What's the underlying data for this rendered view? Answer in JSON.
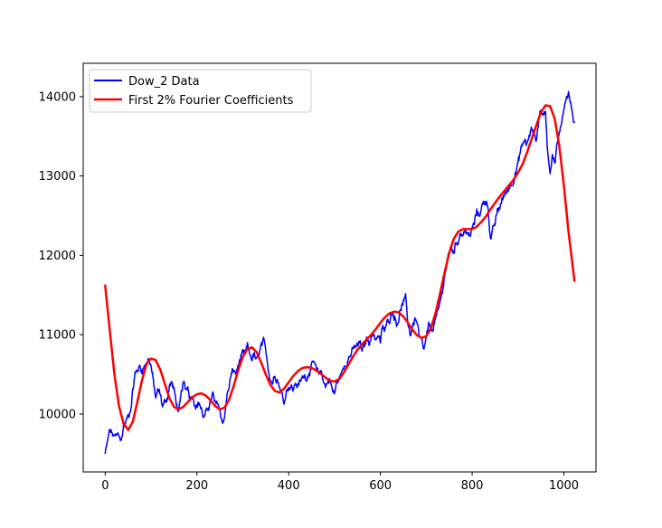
{
  "chart_data": {
    "type": "line",
    "title": "",
    "xlabel": "",
    "ylabel": "",
    "xlim": [
      -48,
      1070
    ],
    "ylim": [
      9270,
      14420
    ],
    "xticks": [
      0,
      200,
      400,
      600,
      800,
      1000
    ],
    "yticks": [
      10000,
      11000,
      12000,
      13000,
      14000
    ],
    "legend": {
      "placement": "upper-left"
    },
    "grid": false,
    "series": [
      {
        "name": "Dow_2 Data",
        "color": "#0000ff",
        "stroke_width": 1.5,
        "noise": 60,
        "x": [
          0,
          5,
          10,
          20,
          30,
          35,
          40,
          45,
          55,
          60,
          65,
          70,
          75,
          80,
          85,
          90,
          95,
          100,
          105,
          110,
          115,
          120,
          125,
          130,
          135,
          140,
          145,
          150,
          155,
          160,
          165,
          170,
          175,
          180,
          185,
          190,
          195,
          200,
          205,
          210,
          215,
          220,
          225,
          230,
          235,
          240,
          245,
          250,
          255,
          260,
          265,
          270,
          275,
          280,
          285,
          290,
          295,
          300,
          305,
          310,
          315,
          320,
          325,
          330,
          335,
          340,
          345,
          350,
          355,
          360,
          365,
          370,
          375,
          380,
          385,
          390,
          395,
          400,
          405,
          410,
          415,
          420,
          425,
          430,
          435,
          440,
          445,
          450,
          455,
          460,
          465,
          470,
          475,
          480,
          485,
          490,
          495,
          500,
          505,
          510,
          515,
          520,
          525,
          530,
          535,
          540,
          545,
          550,
          555,
          560,
          565,
          570,
          575,
          580,
          585,
          590,
          595,
          600,
          605,
          610,
          615,
          620,
          625,
          630,
          635,
          640,
          645,
          650,
          655,
          660,
          665,
          670,
          675,
          680,
          685,
          690,
          695,
          700,
          705,
          710,
          715,
          720,
          725,
          730,
          735,
          740,
          745,
          750,
          755,
          760,
          765,
          770,
          775,
          780,
          785,
          790,
          795,
          800,
          805,
          810,
          815,
          820,
          825,
          830,
          835,
          840,
          845,
          850,
          855,
          860,
          865,
          870,
          875,
          880,
          885,
          890,
          895,
          900,
          905,
          910,
          915,
          920,
          925,
          930,
          935,
          940,
          945,
          950,
          955,
          960,
          965,
          970,
          975,
          980,
          985,
          990,
          995,
          1000,
          1005,
          1010,
          1015,
          1020,
          1023
        ],
        "y": [
          9500,
          9650,
          9800,
          9700,
          9750,
          9650,
          9850,
          9900,
          10050,
          10300,
          10500,
          10550,
          10600,
          10550,
          10600,
          10650,
          10700,
          10600,
          10400,
          10200,
          10300,
          10250,
          10100,
          10150,
          10200,
          10350,
          10400,
          10300,
          10150,
          10000,
          10200,
          10400,
          10300,
          10350,
          10200,
          10250,
          10150,
          10100,
          10150,
          10050,
          9950,
          10000,
          10100,
          10150,
          10250,
          10100,
          10150,
          10050,
          9900,
          9950,
          10200,
          10350,
          10500,
          10550,
          10500,
          10600,
          10700,
          10750,
          10750,
          10850,
          10750,
          10700,
          10750,
          10650,
          10750,
          10850,
          10900,
          10800,
          10600,
          10450,
          10400,
          10500,
          10450,
          10350,
          10250,
          10150,
          10300,
          10350,
          10350,
          10300,
          10400,
          10350,
          10400,
          10450,
          10500,
          10450,
          10550,
          10600,
          10650,
          10550,
          10500,
          10550,
          10450,
          10350,
          10400,
          10450,
          10300,
          10250,
          10400,
          10450,
          10500,
          10600,
          10650,
          10700,
          10750,
          10800,
          10850,
          10850,
          10900,
          10800,
          10850,
          10950,
          10900,
          11000,
          11000,
          10950,
          11000,
          10900,
          11100,
          11050,
          11150,
          11200,
          11300,
          11250,
          11150,
          11200,
          11350,
          11400,
          11450,
          11150,
          11000,
          11100,
          11200,
          11150,
          10950,
          10900,
          10800,
          10950,
          11100,
          11050,
          11100,
          11200,
          11250,
          11400,
          11550,
          11750,
          11900,
          12050,
          12100,
          12050,
          12150,
          12200,
          12300,
          12250,
          12300,
          12300,
          12200,
          12350,
          12400,
          12550,
          12500,
          12600,
          12650,
          12700,
          12600,
          12200,
          12300,
          12400,
          12550,
          12600,
          12700,
          12750,
          12800,
          12850,
          12900,
          12950,
          13050,
          13150,
          13300,
          13400,
          13450,
          13400,
          13500,
          13600,
          13550,
          13450,
          13700,
          13850,
          13750,
          13800,
          13300,
          13050,
          13300,
          13150,
          13400,
          13500,
          13700,
          13850,
          14000,
          14050,
          13900,
          13750,
          13650
        ]
      },
      {
        "name": "First 2% Fourier Coefficients",
        "color": "#ff0000",
        "stroke_width": 2.5,
        "x": [
          0,
          10,
          20,
          30,
          40,
          50,
          60,
          70,
          80,
          90,
          100,
          110,
          120,
          130,
          140,
          150,
          160,
          170,
          180,
          190,
          200,
          210,
          220,
          230,
          240,
          250,
          260,
          270,
          280,
          290,
          300,
          310,
          320,
          330,
          340,
          350,
          360,
          370,
          380,
          390,
          400,
          410,
          420,
          430,
          440,
          450,
          460,
          470,
          480,
          490,
          500,
          510,
          520,
          530,
          540,
          550,
          560,
          570,
          580,
          590,
          600,
          610,
          620,
          630,
          640,
          650,
          660,
          670,
          680,
          690,
          700,
          710,
          720,
          730,
          740,
          750,
          760,
          770,
          780,
          790,
          800,
          810,
          820,
          830,
          840,
          850,
          860,
          870,
          880,
          890,
          900,
          910,
          920,
          930,
          940,
          950,
          960,
          970,
          980,
          990,
          1000,
          1010,
          1023
        ],
        "y": [
          11620,
          11050,
          10500,
          10100,
          9880,
          9800,
          9900,
          10150,
          10420,
          10630,
          10700,
          10680,
          10560,
          10380,
          10200,
          10090,
          10060,
          10090,
          10150,
          10210,
          10250,
          10260,
          10230,
          10170,
          10100,
          10060,
          10080,
          10180,
          10350,
          10550,
          10720,
          10820,
          10840,
          10780,
          10650,
          10500,
          10370,
          10290,
          10270,
          10320,
          10400,
          10480,
          10540,
          10580,
          10590,
          10580,
          10550,
          10510,
          10460,
          10420,
          10410,
          10440,
          10520,
          10620,
          10720,
          10810,
          10880,
          10940,
          11000,
          11070,
          11150,
          11220,
          11270,
          11290,
          11280,
          11230,
          11150,
          11060,
          10990,
          10960,
          10980,
          11080,
          11270,
          11520,
          11780,
          12030,
          12210,
          12300,
          12330,
          12330,
          12330,
          12360,
          12420,
          12490,
          12580,
          12660,
          12740,
          12810,
          12880,
          12950,
          13040,
          13150,
          13300,
          13470,
          13640,
          13800,
          13890,
          13880,
          13720,
          13380,
          12880,
          12300,
          11680
        ]
      }
    ]
  }
}
